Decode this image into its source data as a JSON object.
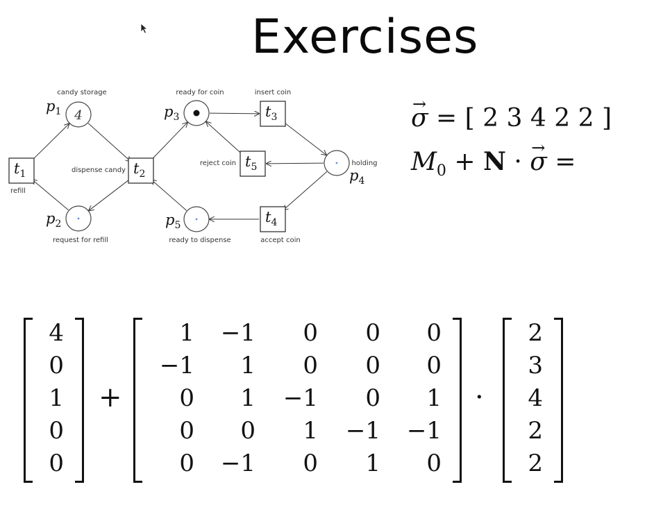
{
  "title": "Exercises",
  "net": {
    "places": [
      {
        "id": "p1",
        "sym": "p",
        "sub": "1",
        "label": "candy storage",
        "tokens": "4"
      },
      {
        "id": "p2",
        "sym": "p",
        "sub": "2",
        "label": "request for refill",
        "tokens": ""
      },
      {
        "id": "p3",
        "sym": "p",
        "sub": "3",
        "label": "ready for coin",
        "tokens": "•"
      },
      {
        "id": "p4",
        "sym": "p",
        "sub": "4",
        "label": "holding",
        "tokens": ""
      },
      {
        "id": "p5",
        "sym": "p",
        "sub": "5",
        "label": "ready to dispense",
        "tokens": ""
      }
    ],
    "transitions": [
      {
        "id": "t1",
        "sym": "t",
        "sub": "1",
        "label": "refill"
      },
      {
        "id": "t2",
        "sym": "t",
        "sub": "2",
        "label": "dispense candy"
      },
      {
        "id": "t3",
        "sym": "t",
        "sub": "3",
        "label": "insert coin"
      },
      {
        "id": "t4",
        "sym": "t",
        "sub": "4",
        "label": "accept coin"
      },
      {
        "id": "t5",
        "sym": "t",
        "sub": "5",
        "label": "reject coin"
      }
    ]
  },
  "sigma_eq": {
    "sigma": "σ",
    "eq": "=",
    "open": "[",
    "close": "]",
    "values": [
      "2",
      "3",
      "4",
      "2",
      "2"
    ]
  },
  "m0_eq": {
    "m": "M",
    "m_sub": "0",
    "plus": "+",
    "n": "N",
    "dot": "·",
    "sigma": "σ",
    "eq": "="
  },
  "m0_vector": [
    "4",
    "0",
    "1",
    "0",
    "0"
  ],
  "incidence_matrix": [
    [
      "1",
      "−1",
      "0",
      "0",
      "0"
    ],
    [
      "−1",
      "1",
      "0",
      "0",
      "0"
    ],
    [
      "0",
      "1",
      "−1",
      "0",
      "1"
    ],
    [
      "0",
      "0",
      "1",
      "−1",
      "−1"
    ],
    [
      "0",
      "−1",
      "0",
      "1",
      "0"
    ]
  ],
  "sigma_vector": [
    "2",
    "3",
    "4",
    "2",
    "2"
  ],
  "operators": {
    "plus": "+",
    "dot": "·"
  }
}
